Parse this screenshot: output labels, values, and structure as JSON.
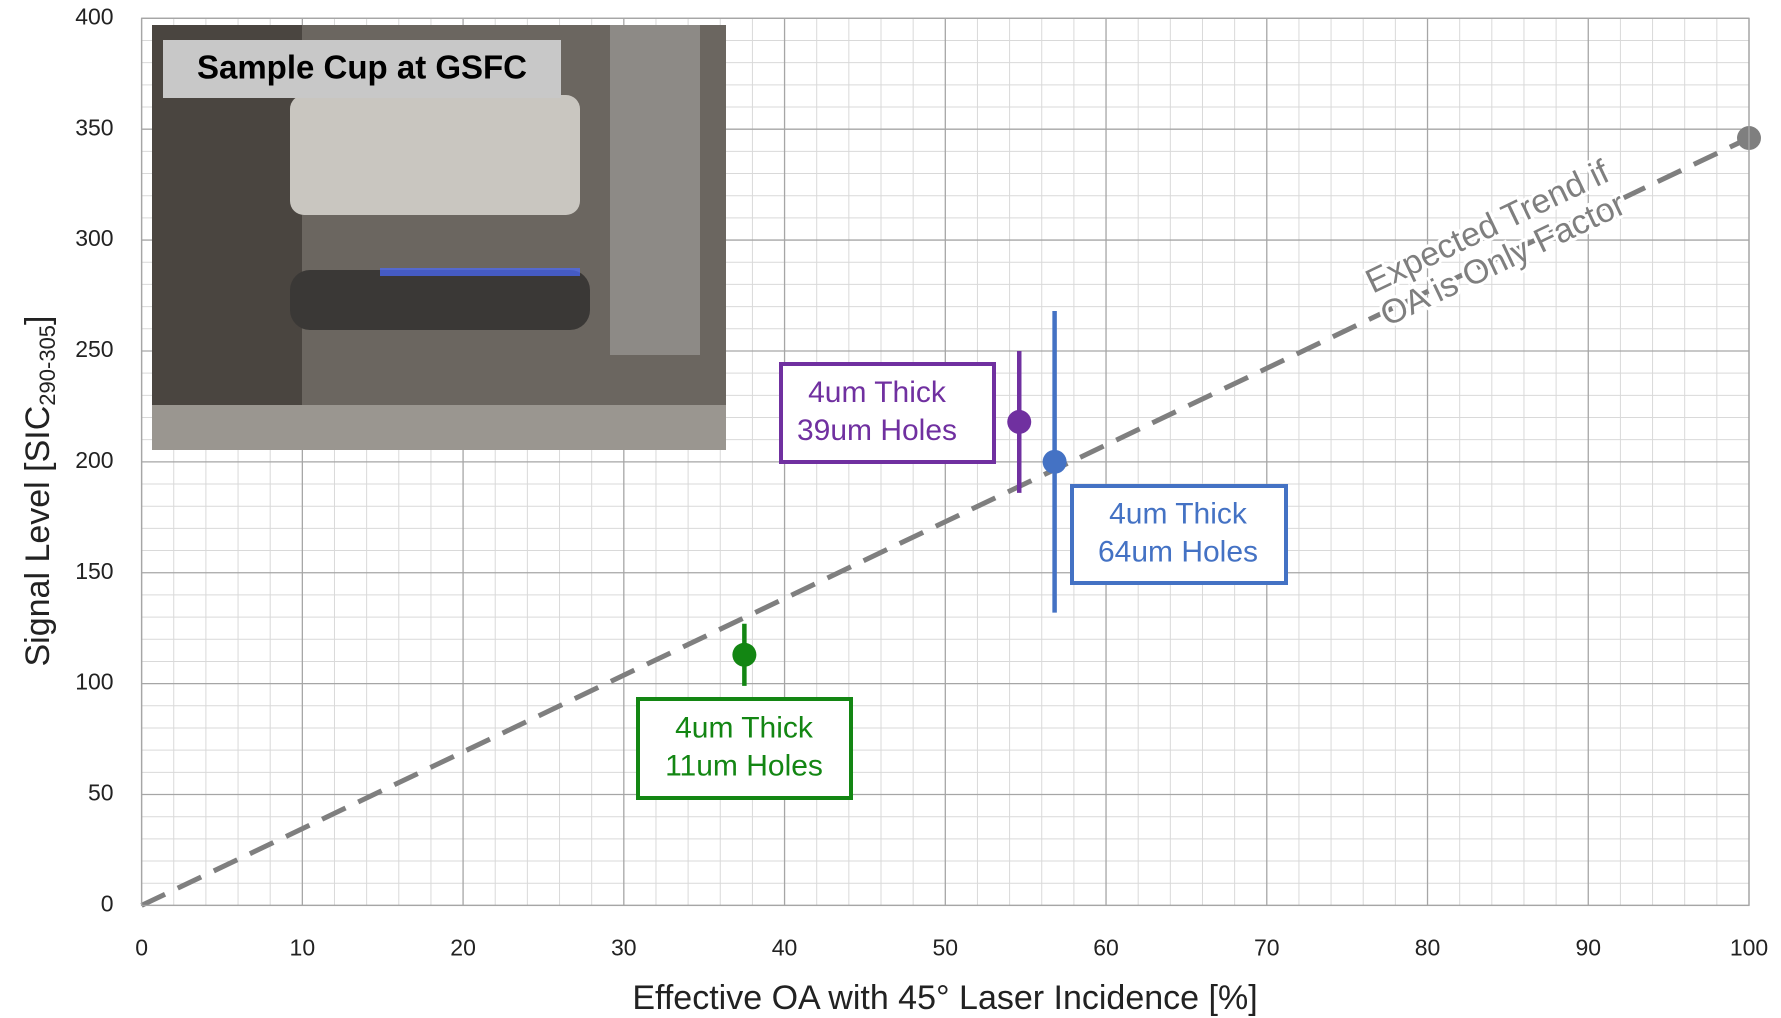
{
  "chart_data": {
    "type": "scatter",
    "xlabel": "Effective OA with 45° Laser Incidence [%]",
    "ylabel": {
      "text": "Signal Level [SIC",
      "sub": "290-305",
      "after": "]"
    },
    "xlim": [
      0,
      100
    ],
    "xticks": [
      0,
      10,
      20,
      30,
      40,
      50,
      60,
      70,
      80,
      90,
      100
    ],
    "ylim": [
      0,
      400
    ],
    "yticks": [
      0,
      50,
      100,
      150,
      200,
      250,
      300,
      350,
      400
    ],
    "grid": true,
    "minor_grid": true,
    "inset_label": "Sample Cup at GSFC",
    "trend": {
      "color": "#7f7f7f",
      "x": [
        0,
        100
      ],
      "values": [
        0,
        346
      ],
      "label": [
        "Expected Trend if",
        "OA is Only Factor"
      ]
    },
    "series": [
      {
        "color": "#138613",
        "x": [
          37.5
        ],
        "values": [
          113
        ],
        "errors": [
          14
        ],
        "label": [
          "4um Thick",
          "11um Holes"
        ]
      },
      {
        "color": "#7030a0",
        "x": [
          54.6
        ],
        "values": [
          218
        ],
        "errors": [
          32
        ],
        "label": [
          "4um Thick",
          "39um Holes"
        ]
      },
      {
        "color": "#4472c4",
        "x": [
          56.8
        ],
        "values": [
          200
        ],
        "errors": [
          68
        ],
        "label": [
          "4um Thick",
          "64um Holes"
        ]
      },
      {
        "color": "#7f7f7f",
        "x": [
          100
        ],
        "values": [
          346
        ]
      }
    ]
  }
}
